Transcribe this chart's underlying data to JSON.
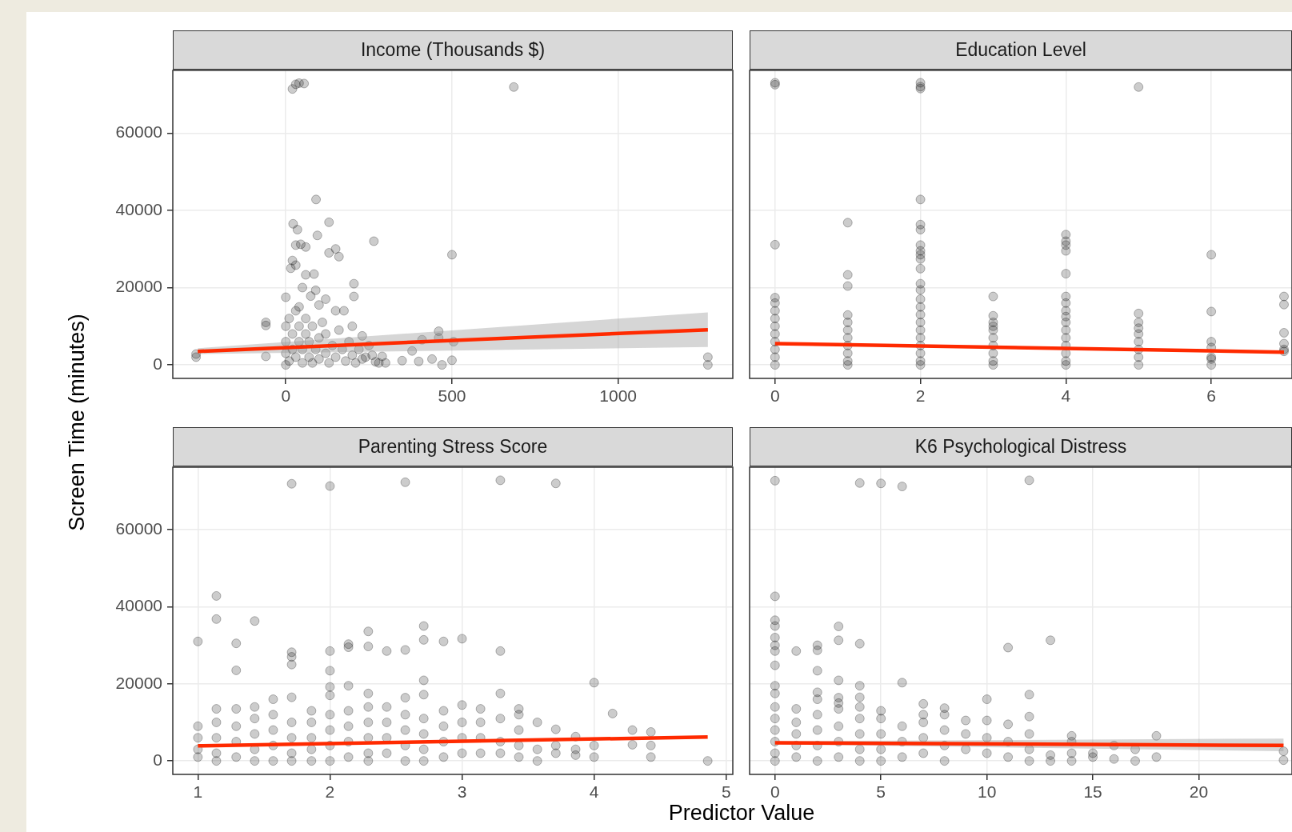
{
  "chart_data": [
    {
      "type": "scatter",
      "title": "Income (Thousands $)",
      "ylabel": "Screen Time (minutes)",
      "xlim": [
        -340,
        1345
      ],
      "xticks": [
        0,
        500,
        1000
      ],
      "ylim": [
        -3500,
        76200
      ],
      "yticks": [
        0,
        20000,
        40000,
        60000
      ],
      "grid": true,
      "series": [
        {
          "marker": "circle",
          "color": "#000000",
          "x": [
            20,
            30,
            40,
            55,
            686,
            91,
            22,
            35,
            130,
            95,
            30,
            45,
            60,
            150,
            130,
            160,
            265,
            500,
            20,
            30,
            15,
            60,
            85,
            205,
            205,
            50,
            90,
            0,
            150,
            175,
            -60,
            -60,
            -60,
            -270,
            -270,
            410,
            460,
            460,
            505,
            380,
            400,
            440,
            470,
            500,
            350,
            300,
            1270,
            1270,
            280,
            240,
            250,
            230,
            200,
            120,
            100,
            75,
            40,
            0,
            0,
            0,
            0,
            10,
            10,
            20,
            20,
            30,
            30,
            40,
            40,
            50,
            50,
            60,
            60,
            70,
            70,
            80,
            80,
            90,
            100,
            100,
            110,
            120,
            120,
            130,
            140,
            150,
            160,
            170,
            180,
            190,
            200,
            210,
            220,
            230,
            260,
            270,
            290
          ],
          "values": [
            71400,
            72600,
            72900,
            72800,
            71900,
            42800,
            36500,
            35000,
            36900,
            33500,
            31000,
            31200,
            30500,
            30000,
            29000,
            28000,
            32000,
            28500,
            27000,
            25800,
            25000,
            23300,
            23500,
            21000,
            17700,
            20000,
            19300,
            17500,
            14000,
            14000,
            10200,
            11000,
            2200,
            2800,
            2000,
            6500,
            8700,
            7000,
            6000,
            3600,
            900,
            1500,
            0,
            1200,
            1100,
            500,
            2000,
            0,
            500,
            2000,
            5000,
            7500,
            10000,
            17000,
            15500,
            17800,
            15000,
            0,
            3000,
            6000,
            10000,
            1000,
            12000,
            4000,
            8000,
            2000,
            14000,
            6000,
            10000,
            500,
            4000,
            8000,
            12000,
            2000,
            6000,
            10000,
            500,
            4000,
            7000,
            1500,
            11000,
            3000,
            8000,
            500,
            5000,
            2000,
            9000,
            4000,
            1000,
            6000,
            2500,
            500,
            4000,
            1500,
            2500,
            800,
            2200
          ]
        },
        {
          "type": "line",
          "color": "#ff2a00",
          "x": [
            -265,
            1270
          ],
          "values": [
            3500,
            9100
          ],
          "lower": [
            2800,
            4600
          ],
          "upper": [
            4300,
            13600
          ]
        }
      ]
    },
    {
      "type": "scatter",
      "title": "Education Level",
      "xlim": [
        -0.35,
        7.11
      ],
      "xticks": [
        0,
        2,
        4,
        6
      ],
      "ylim": [
        -3500,
        76200
      ],
      "yticks": [
        0,
        20000,
        40000,
        60000
      ],
      "grid": true,
      "tick_labels": "x",
      "series": [
        {
          "marker": "circle",
          "color": "#000000",
          "x": [
            0,
            0,
            0,
            0,
            0,
            0,
            0,
            0,
            0,
            0,
            0,
            0,
            0,
            1,
            1,
            1,
            1,
            1,
            1,
            1,
            1,
            1,
            1,
            1,
            2,
            2,
            2,
            2,
            2,
            2,
            2,
            2,
            2,
            2,
            2,
            2,
            2,
            2,
            2,
            2,
            2,
            2,
            2,
            2,
            2,
            2,
            2,
            3,
            3,
            3,
            3,
            3,
            3,
            3,
            3,
            3,
            3,
            4,
            4,
            4,
            4,
            4,
            4,
            4,
            4,
            4,
            4,
            4,
            4,
            4,
            4,
            4,
            4,
            5,
            5,
            5,
            5,
            5,
            5,
            5,
            5,
            5,
            6,
            6,
            6,
            6,
            6,
            6,
            6,
            7,
            7,
            7,
            7,
            7,
            7
          ],
          "values": [
            72500,
            73000,
            31100,
            17400,
            16000,
            14000,
            12000,
            10000,
            8000,
            6000,
            4000,
            2000,
            0,
            36800,
            23300,
            20400,
            12900,
            11000,
            9000,
            7000,
            5000,
            3000,
            1000,
            0,
            72000,
            73000,
            71500,
            42800,
            36300,
            35000,
            31000,
            29500,
            28500,
            27400,
            24900,
            21000,
            19400,
            17000,
            15000,
            13000,
            11000,
            9000,
            7000,
            5000,
            3000,
            1000,
            0,
            17700,
            12700,
            11000,
            10000,
            9000,
            7000,
            5000,
            3000,
            1000,
            0,
            33700,
            32000,
            31000,
            29500,
            23600,
            17700,
            16000,
            14000,
            12500,
            11000,
            9000,
            7000,
            5000,
            3000,
            1000,
            0,
            71900,
            13300,
            11000,
            9500,
            8000,
            6000,
            4000,
            2000,
            0,
            28500,
            13800,
            6000,
            4500,
            2000,
            1500,
            0,
            17700,
            15600,
            8300,
            5500,
            4000,
            3500
          ]
        },
        {
          "type": "line",
          "color": "#ff2a00",
          "x": [
            0,
            7
          ],
          "values": [
            5500,
            3300
          ]
        }
      ]
    },
    {
      "type": "scatter",
      "title": "Parenting Stress Score",
      "xlabel": "Predictor Value",
      "xlim": [
        0.81,
        5.05
      ],
      "xticks": [
        1,
        2,
        3,
        4,
        5
      ],
      "ylim": [
        -3500,
        76200
      ],
      "yticks": [
        0,
        20000,
        40000,
        60000
      ],
      "grid": true,
      "series": [
        {
          "marker": "circle",
          "color": "#000000",
          "x": [
            1,
            1,
            1,
            1,
            1,
            1.14,
            1.14,
            1.14,
            1.14,
            1.14,
            1.14,
            1.14,
            1.29,
            1.29,
            1.29,
            1.29,
            1.29,
            1.29,
            1.43,
            1.43,
            1.43,
            1.43,
            1.43,
            1.43,
            1.57,
            1.57,
            1.57,
            1.57,
            1.57,
            1.71,
            1.71,
            1.71,
            1.71,
            1.71,
            1.71,
            1.71,
            1.71,
            1.71,
            1.86,
            1.86,
            1.86,
            1.86,
            1.86,
            2,
            2,
            2,
            2,
            2,
            2,
            2,
            2,
            2,
            2.14,
            2.14,
            2.14,
            2.14,
            2.14,
            2.14,
            2.14,
            2.29,
            2.29,
            2.29,
            2.29,
            2.29,
            2.29,
            2.29,
            2.29,
            2.43,
            2.43,
            2.43,
            2.43,
            2.43,
            2.57,
            2.57,
            2.57,
            2.57,
            2.57,
            2.57,
            2.57,
            2.71,
            2.71,
            2.71,
            2.71,
            2.71,
            2.71,
            2.71,
            2.71,
            2.86,
            2.86,
            2.86,
            2.86,
            2.86,
            3,
            3,
            3,
            3,
            3,
            3.14,
            3.14,
            3.14,
            3.14,
            3.29,
            3.29,
            3.29,
            3.29,
            3.29,
            3.29,
            3.43,
            3.43,
            3.43,
            3.43,
            3.43,
            3.57,
            3.57,
            3.57,
            3.71,
            3.71,
            3.71,
            3.71,
            3.86,
            3.86,
            3.86,
            4,
            4,
            4,
            4.14,
            4.29,
            4.29,
            4.43,
            4.43,
            4.43,
            4.86
          ],
          "values": [
            31000,
            9000,
            6000,
            3000,
            1000,
            42800,
            36800,
            13500,
            10000,
            6000,
            2000,
            0,
            30500,
            23500,
            13500,
            9000,
            5000,
            1000,
            36300,
            14000,
            11000,
            7000,
            3000,
            0,
            16000,
            12000,
            8000,
            4000,
            0,
            71900,
            28200,
            27000,
            25000,
            16500,
            10000,
            6000,
            2000,
            0,
            13000,
            10000,
            6000,
            3000,
            0,
            71300,
            28500,
            23400,
            19200,
            17000,
            12000,
            8000,
            4000,
            0,
            30300,
            29500,
            19500,
            13000,
            9000,
            5000,
            1000,
            33600,
            29700,
            17500,
            14000,
            10000,
            6000,
            2000,
            0,
            28500,
            14000,
            10000,
            6000,
            2000,
            72300,
            28800,
            16400,
            12000,
            8000,
            4000,
            0,
            35000,
            31400,
            20900,
            17200,
            11000,
            7000,
            3000,
            0,
            31000,
            13000,
            9000,
            5000,
            1000,
            31700,
            14500,
            10000,
            6000,
            2000,
            13500,
            10000,
            6000,
            2000,
            72800,
            28500,
            17500,
            11000,
            5000,
            2000,
            13500,
            12000,
            8000,
            4000,
            1000,
            10000,
            3000,
            0,
            72000,
            8200,
            4000,
            2000,
            6300,
            3000,
            1500,
            20300,
            4000,
            1000,
            12300,
            8000,
            4200,
            7500,
            4000,
            1000,
            0
          ]
        },
        {
          "type": "line",
          "color": "#ff2a00",
          "x": [
            1,
            4.86
          ],
          "values": [
            3900,
            6200
          ]
        }
      ]
    },
    {
      "type": "scatter",
      "title": "K6 Psychological Distress",
      "xlim": [
        -1.2,
        24.4
      ],
      "xticks": [
        0,
        5,
        10,
        15,
        20
      ],
      "ylim": [
        -3500,
        76200
      ],
      "yticks": [
        0,
        20000,
        40000,
        60000
      ],
      "grid": true,
      "tick_labels": "x",
      "series": [
        {
          "marker": "circle",
          "color": "#000000",
          "x": [
            0,
            0,
            0,
            0,
            0,
            0,
            0,
            0,
            0,
            0,
            0,
            0,
            0,
            0,
            0,
            0,
            1,
            1,
            1,
            1,
            1,
            1,
            2,
            2,
            2,
            2,
            2,
            2,
            2,
            2,
            2,
            3,
            3,
            3,
            3,
            3,
            3,
            3,
            3,
            3,
            4,
            4,
            4,
            4,
            4,
            4,
            4,
            4,
            4,
            5,
            5,
            5,
            5,
            5,
            5,
            6,
            6,
            6,
            6,
            6,
            7,
            7,
            7,
            7,
            7,
            8,
            8,
            8,
            8,
            8,
            9,
            9,
            9,
            10,
            10,
            10,
            10,
            11,
            11,
            11,
            11,
            12,
            12,
            12,
            12,
            12,
            12,
            13,
            13,
            13,
            14,
            14,
            14,
            14,
            15,
            15,
            16,
            16,
            17,
            17,
            18,
            18,
            24,
            24
          ],
          "values": [
            72700,
            42700,
            36500,
            35000,
            32000,
            30000,
            28500,
            24800,
            19500,
            17500,
            14000,
            11000,
            8000,
            5000,
            2000,
            0,
            28500,
            13500,
            10000,
            7000,
            4000,
            1000,
            30000,
            28700,
            23400,
            17800,
            16000,
            12000,
            8000,
            4000,
            0,
            34900,
            31300,
            20900,
            16400,
            15000,
            13500,
            9000,
            5000,
            1000,
            72100,
            30400,
            19500,
            16500,
            14000,
            11000,
            7000,
            3000,
            0,
            72000,
            13000,
            11000,
            7000,
            3000,
            0,
            71200,
            20300,
            9000,
            5000,
            1000,
            14800,
            12000,
            10000,
            6000,
            2000,
            13700,
            12000,
            8000,
            4000,
            0,
            10500,
            7000,
            3000,
            16000,
            10500,
            6000,
            2000,
            29400,
            9500,
            5000,
            1000,
            72800,
            17200,
            11500,
            7000,
            3000,
            0,
            31300,
            1500,
            0,
            6500,
            5000,
            2000,
            0,
            2000,
            1000,
            4000,
            500,
            3000,
            0,
            6500,
            1000,
            2500,
            200
          ]
        },
        {
          "type": "line",
          "color": "#ff2a00",
          "x": [
            0,
            24
          ],
          "values": [
            4700,
            4000
          ],
          "lower": [
            4300,
            2500
          ],
          "upper": [
            5100,
            5800
          ]
        }
      ]
    }
  ]
}
